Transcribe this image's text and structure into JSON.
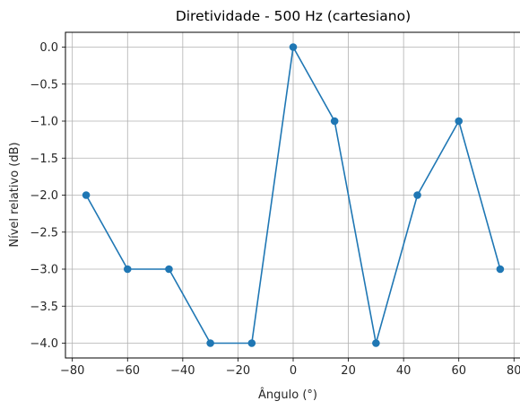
{
  "chart_data": {
    "type": "line",
    "title": "Diretividade - 500 Hz (cartesiano)",
    "xlabel": "Ângulo (°)",
    "ylabel": "Nível relativo (dB)",
    "xlim": [
      -82.5,
      82.5
    ],
    "ylim": [
      -4.2,
      0.2
    ],
    "xticks": [
      -80,
      -60,
      -40,
      -20,
      0,
      20,
      40,
      60,
      80
    ],
    "xtick_labels": [
      "−80",
      "−60",
      "−40",
      "−20",
      "0",
      "20",
      "40",
      "60",
      "80"
    ],
    "yticks": [
      0.0,
      -0.5,
      -1.0,
      -1.5,
      -2.0,
      -2.5,
      -3.0,
      -3.5,
      -4.0
    ],
    "ytick_labels": [
      "0.0",
      "−0.5",
      "−1.0",
      "−1.5",
      "−2.0",
      "−2.5",
      "−3.0",
      "−3.5",
      "−4.0"
    ],
    "grid": true,
    "color": "#1f77b4",
    "marker": "circle",
    "series": [
      {
        "x": [
          -75,
          -60,
          -45,
          -30,
          -15,
          0,
          15,
          30,
          45,
          60,
          75
        ],
        "y": [
          -2,
          -3,
          -3,
          -4,
          -4,
          0,
          -1,
          -4,
          -2,
          -1,
          -3
        ]
      }
    ]
  }
}
